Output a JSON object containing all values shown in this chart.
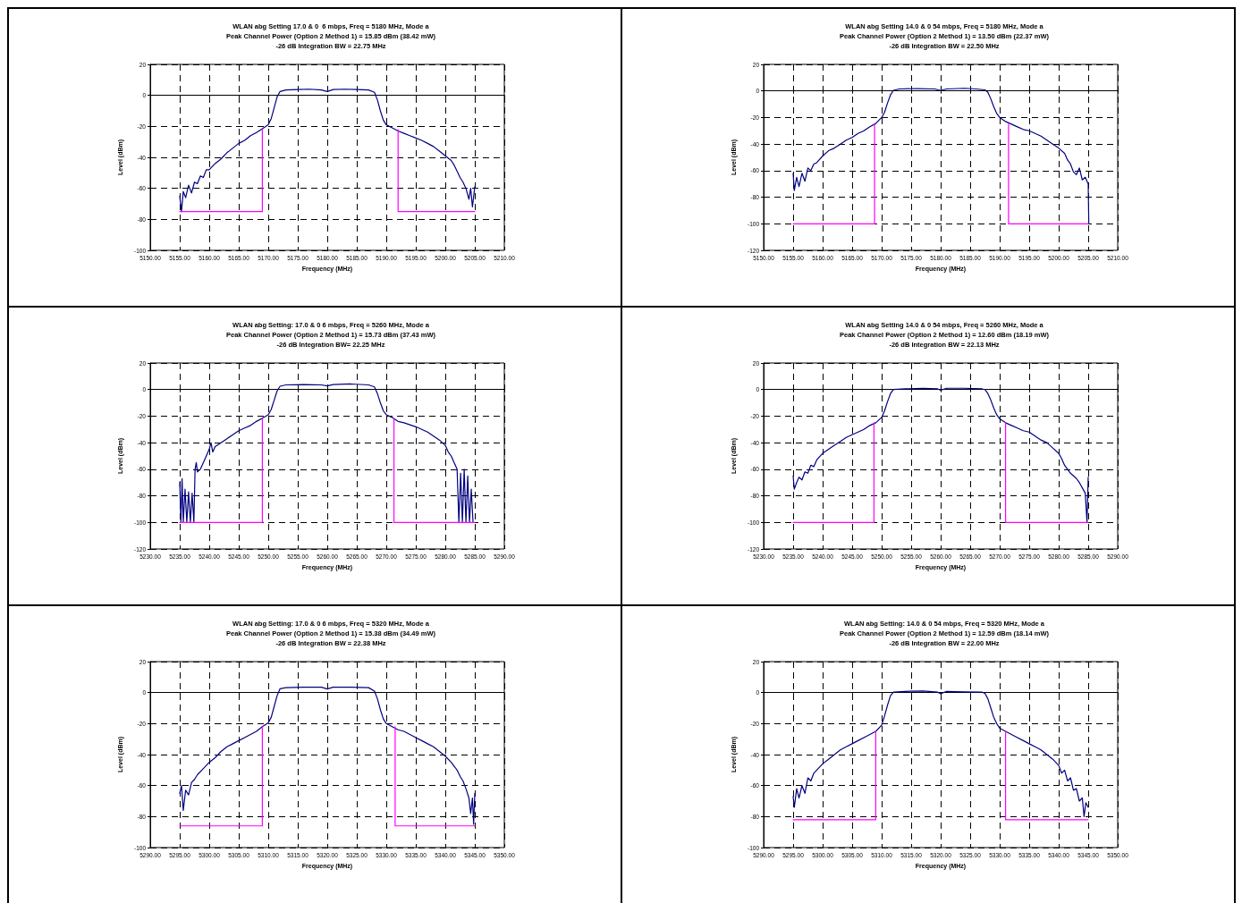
{
  "chart_data": [
    {
      "type": "line",
      "title": "WLAN abg Setting 17.0 & 0  6 mbps, Freq = 5180 MHz, Mode a",
      "subtitle": "Peak Channel Power (Option 2 Method 1) = 15.85 dBm (38.42 mW)",
      "annotations": [
        "-26 dB Integration BW = 22.75 MHz"
      ],
      "xlabel": "Frequency (MHz)",
      "ylabel": "Level (dBm)",
      "grid": true,
      "marker": "none",
      "line_style": "solid",
      "xlim": [
        5150,
        5210
      ],
      "xticks": [
        {
          "value": 5150,
          "label": "5150.00"
        },
        {
          "value": 5155,
          "label": "5155.00"
        },
        {
          "value": 5160,
          "label": "5160.00"
        },
        {
          "value": 5165,
          "label": "5165.00"
        },
        {
          "value": 5170,
          "label": "5170.00"
        },
        {
          "value": 5175,
          "label": "5175.00"
        },
        {
          "value": 5180,
          "label": "5180.00"
        },
        {
          "value": 5185,
          "label": "5185.00"
        },
        {
          "value": 5190,
          "label": "5190.00"
        },
        {
          "value": 5195,
          "label": "5195.00"
        },
        {
          "value": 5200,
          "label": "5200.00"
        },
        {
          "value": 5205,
          "label": "5205.00"
        },
        {
          "value": 5210,
          "label": "5210.00"
        }
      ],
      "ylim": [
        -100,
        20
      ],
      "yticks": [
        -100,
        -80,
        -60,
        -40,
        -20,
        0,
        20
      ],
      "series": [
        {
          "color": "#000080",
          "x": [
            5155,
            5155.3,
            5155.6,
            5156,
            5156.5,
            5157,
            5157.5,
            5158,
            5158.5,
            5159,
            5159.5,
            5160,
            5161,
            5162,
            5163,
            5164,
            5165,
            5166,
            5167,
            5168,
            5169,
            5170,
            5170.5,
            5171,
            5171.5,
            5172,
            5173,
            5175,
            5177,
            5179,
            5180,
            5181,
            5183,
            5185,
            5187,
            5188,
            5188.5,
            5189,
            5189.5,
            5190,
            5191,
            5192,
            5193,
            5194,
            5195,
            5196,
            5197,
            5198,
            5199,
            5200,
            5201,
            5201.5,
            5202,
            5202.5,
            5203,
            5203.5,
            5204,
            5204.3,
            5204.6,
            5205
          ],
          "values": [
            -65,
            -75,
            -62,
            -66,
            -58,
            -63,
            -56,
            -57,
            -52,
            -53,
            -48,
            -48,
            -44,
            -41,
            -37,
            -34,
            -31,
            -29,
            -26,
            -24,
            -21.5,
            -19,
            -15,
            -8,
            -1,
            2.5,
            3.5,
            3.8,
            4,
            3.5,
            2.5,
            3.8,
            4,
            3.8,
            3.5,
            2,
            -3,
            -10,
            -16,
            -19,
            -21,
            -23,
            -24.5,
            -26,
            -27.5,
            -29,
            -31,
            -33,
            -36,
            -39,
            -42,
            -45,
            -49,
            -53,
            -56,
            -60,
            -67,
            -60,
            -72,
            -59
          ]
        },
        {
          "color": "#ff00ff",
          "x": [
            5155,
            5169,
            5169,
            5180,
            5192,
            5192,
            5205
          ],
          "values": [
            -75,
            -75,
            -22,
            null,
            -22,
            -75,
            -75
          ]
        }
      ]
    },
    {
      "type": "line",
      "title": "WLAN abg Setting 14.0 & 0 54 mbps, Freq = 5180 MHz, Mode a",
      "subtitle": "Peak Channel Power (Option 2 Method 1) = 13.50 dBm (22.37 mW)",
      "annotations": [
        "-26 dB Integration BW = 22.50 MHz"
      ],
      "xlabel": "Frequency (MHz)",
      "ylabel": "Level (dBm)",
      "grid": true,
      "marker": "none",
      "line_style": "solid",
      "xlim": [
        5150,
        5210
      ],
      "xticks": [
        {
          "value": 5150,
          "label": "5150.00"
        },
        {
          "value": 5155,
          "label": "5155.00"
        },
        {
          "value": 5160,
          "label": "5160.00"
        },
        {
          "value": 5165,
          "label": "5165.00"
        },
        {
          "value": 5170,
          "label": "5170.00"
        },
        {
          "value": 5175,
          "label": "5175.00"
        },
        {
          "value": 5180,
          "label": "5180.00"
        },
        {
          "value": 5185,
          "label": "5185.00"
        },
        {
          "value": 5190,
          "label": "5190.00"
        },
        {
          "value": 5195,
          "label": "5195.00"
        },
        {
          "value": 5200,
          "label": "5200.00"
        },
        {
          "value": 5205,
          "label": "5205.00"
        },
        {
          "value": 5210,
          "label": "5210.00"
        }
      ],
      "ylim": [
        -120,
        20
      ],
      "yticks": [
        -120,
        -100,
        -80,
        -60,
        -40,
        -20,
        0,
        20
      ],
      "series": [
        {
          "color": "#000080",
          "x": [
            5155,
            5155.2,
            5155.6,
            5156,
            5156.5,
            5157,
            5157.5,
            5158,
            5158.5,
            5159,
            5160,
            5161,
            5162,
            5163,
            5164,
            5165,
            5166,
            5167,
            5168,
            5169,
            5170,
            5170.5,
            5171,
            5171.5,
            5172,
            5173,
            5176,
            5179,
            5180,
            5181,
            5184,
            5186,
            5187.5,
            5188,
            5188.5,
            5189,
            5189.5,
            5190,
            5191,
            5192,
            5193,
            5194,
            5195,
            5196,
            5197,
            5198,
            5199,
            5200,
            5201,
            5201.5,
            5202,
            5202.5,
            5203,
            5203.5,
            5204,
            5204.5,
            5205,
            5205.1
          ],
          "values": [
            -62,
            -75,
            -65,
            -72,
            -62,
            -68,
            -58,
            -60,
            -55,
            -54,
            -49,
            -45,
            -43,
            -40,
            -37,
            -35,
            -32,
            -30,
            -27,
            -24.5,
            -20,
            -16,
            -9,
            -3,
            0.5,
            1.5,
            1.8,
            1.5,
            0.3,
            1.5,
            2,
            1.5,
            0.8,
            -1,
            -6,
            -12,
            -17,
            -20,
            -23,
            -25,
            -27,
            -29,
            -30,
            -32,
            -34,
            -37,
            -40,
            -43,
            -47,
            -52,
            -55,
            -61,
            -63,
            -58,
            -67,
            -65,
            -70,
            -100
          ]
        },
        {
          "color": "#ff00ff",
          "x": [
            5155,
            5168.8,
            5168.8,
            5180,
            5191.5,
            5191.5,
            5205
          ],
          "values": [
            -100,
            -100,
            -25,
            null,
            -25,
            -100,
            -100
          ]
        }
      ]
    },
    {
      "type": "line",
      "title": "WLAN abg Setting: 17.0 & 0 6 mbps, Freq = 5260 MHz, Mode a",
      "subtitle": "Peak Channel Power (Option 2 Method 1) = 15.73 dBm (37.43 mW)",
      "annotations": [
        "-26 dB Integration BW= 22.25 MHz"
      ],
      "xlabel": "Frequency (MHz)",
      "ylabel": "Level (dBm)",
      "grid": true,
      "marker": "none",
      "line_style": "solid",
      "xlim": [
        5230,
        5290
      ],
      "xticks": [
        {
          "value": 5230,
          "label": "5230.00"
        },
        {
          "value": 5235,
          "label": "5235.00"
        },
        {
          "value": 5240,
          "label": "5240.00"
        },
        {
          "value": 5245,
          "label": "5245.00"
        },
        {
          "value": 5250,
          "label": "5250.00"
        },
        {
          "value": 5255,
          "label": "5255.00"
        },
        {
          "value": 5260,
          "label": "5260.00"
        },
        {
          "value": 5265,
          "label": "5265.00"
        },
        {
          "value": 5270,
          "label": "5270.00"
        },
        {
          "value": 5275,
          "label": "5275.00"
        },
        {
          "value": 5280,
          "label": "5280.00"
        },
        {
          "value": 5285,
          "label": "5285.00"
        },
        {
          "value": 5290,
          "label": "5290.00"
        }
      ],
      "ylim": [
        -120,
        20
      ],
      "yticks": [
        -120,
        -100,
        -80,
        -60,
        -40,
        -20,
        0,
        20
      ],
      "series": [
        {
          "color": "#000080",
          "x": [
            5235,
            5235.2,
            5235.4,
            5235.6,
            5235.9,
            5236.2,
            5236.5,
            5236.8,
            5237.1,
            5237.4,
            5237.6,
            5237.8,
            5238,
            5238.5,
            5239,
            5239.5,
            5240,
            5240.3,
            5240.6,
            5241,
            5242,
            5243,
            5244,
            5245,
            5246,
            5247,
            5248,
            5249,
            5250,
            5250.5,
            5251,
            5251.5,
            5252,
            5253,
            5256,
            5259,
            5260,
            5261,
            5264,
            5267,
            5268,
            5268.5,
            5269,
            5269.5,
            5270,
            5271,
            5272,
            5273,
            5274,
            5275,
            5276,
            5277,
            5278,
            5279,
            5280,
            5280.5,
            5281,
            5281.5,
            5282,
            5282.3,
            5282.6,
            5282.9,
            5283.2,
            5283.5,
            5283.8,
            5284.1,
            5284.4,
            5284.7
          ],
          "values": [
            -70,
            -100,
            -67,
            -100,
            -75,
            -100,
            -77,
            -100,
            -78,
            -100,
            -60,
            -55,
            -62,
            -60,
            -55,
            -50,
            -45,
            -40,
            -47,
            -43,
            -40,
            -37,
            -34,
            -31,
            -29,
            -27,
            -24,
            -21.5,
            -19,
            -15,
            -8,
            -1,
            2.5,
            3.5,
            3.8,
            3.5,
            2.8,
            3.8,
            4.2,
            3.5,
            2,
            -3,
            -10,
            -16,
            -19,
            -21,
            -24,
            -25,
            -26.5,
            -28,
            -30,
            -32,
            -35,
            -38,
            -42,
            -47,
            -50,
            -55,
            -60,
            -100,
            -63,
            -100,
            -60,
            -100,
            -65,
            -100,
            -75,
            -100
          ]
        },
        {
          "color": "#ff00ff",
          "x": [
            5235,
            5249,
            5249,
            5260,
            5271.3,
            5271.3,
            5285
          ],
          "values": [
            -100,
            -100,
            -22,
            null,
            -22,
            -100,
            -100
          ]
        }
      ]
    },
    {
      "type": "line",
      "title": "WLAN abg Setting 14.0 & 0 54 mbps, Freq = 5260 MHz, Mode a",
      "subtitle": "Peak Channel Power (Option 2 Method 1) = 12.60 dBm (18.19 mW)",
      "annotations": [
        "-26 dB Integration BW = 22.13 MHz"
      ],
      "xlabel": "Frequency (MHz)",
      "ylabel": "Level (dBm)",
      "grid": true,
      "marker": "none",
      "line_style": "solid",
      "xlim": [
        5230,
        5290
      ],
      "xticks": [
        {
          "value": 5230,
          "label": "5230.00"
        },
        {
          "value": 5235,
          "label": "5235.00"
        },
        {
          "value": 5240,
          "label": "5240.00"
        },
        {
          "value": 5245,
          "label": "5245.00"
        },
        {
          "value": 5250,
          "label": "5250.00"
        },
        {
          "value": 5255,
          "label": "5255.00"
        },
        {
          "value": 5260,
          "label": "5260.00"
        },
        {
          "value": 5265,
          "label": "5265.00"
        },
        {
          "value": 5270,
          "label": "5270.00"
        },
        {
          "value": 5275,
          "label": "5275.00"
        },
        {
          "value": 5280,
          "label": "5280.00"
        },
        {
          "value": 5285,
          "label": "5285.00"
        },
        {
          "value": 5290,
          "label": "5290.00"
        }
      ],
      "ylim": [
        -120,
        20
      ],
      "yticks": [
        -120,
        -100,
        -80,
        -60,
        -40,
        -20,
        0,
        20
      ],
      "series": [
        {
          "color": "#000080",
          "x": [
            5235,
            5235.2,
            5235.6,
            5236,
            5236.5,
            5237,
            5237.5,
            5238,
            5238.5,
            5239,
            5240,
            5241,
            5242,
            5243,
            5244,
            5245,
            5246,
            5247,
            5248,
            5249,
            5250,
            5250.5,
            5251,
            5251.5,
            5252,
            5254,
            5257,
            5259.5,
            5260,
            5261,
            5264,
            5267,
            5267.5,
            5268,
            5268.5,
            5269,
            5269.5,
            5270,
            5271,
            5272,
            5273,
            5274,
            5275,
            5276,
            5277,
            5278,
            5279,
            5280,
            5280.5,
            5281,
            5281.5,
            5282,
            5283,
            5283.5,
            5284,
            5284.5,
            5284.8,
            5285
          ],
          "values": [
            -65,
            -75,
            -70,
            -66,
            -68,
            -62,
            -63,
            -57,
            -58,
            -53,
            -48,
            -45,
            -42,
            -39,
            -36,
            -34,
            -32,
            -30,
            -27,
            -25,
            -21,
            -16,
            -9,
            -3,
            0,
            0.5,
            1,
            0.5,
            -0.5,
            1,
            1,
            0.5,
            0,
            -3,
            -8,
            -14,
            -19,
            -22,
            -25,
            -27,
            -29,
            -31,
            -32,
            -35,
            -38,
            -40,
            -44,
            -48,
            -52,
            -57,
            -60,
            -63,
            -67,
            -70,
            -74,
            -78,
            -100,
            -66
          ]
        },
        {
          "color": "#ff00ff",
          "x": [
            5235,
            5248.7,
            5248.7,
            5260,
            5271,
            5271,
            5285
          ],
          "values": [
            -100,
            -100,
            -25,
            null,
            -25,
            -100,
            -100
          ]
        }
      ]
    },
    {
      "type": "line",
      "title": "WLAN abg Setting: 17.0 & 0 6 mbps, Freq = 5320 MHz, Mode a",
      "subtitle": "Peak Channel Power (Option 2 Method 1) = 15.38 dBm (34.49 mW)",
      "annotations": [
        "-26 dB Integration BW = 22.38 MHz"
      ],
      "xlabel": "Frequency (MHz)",
      "ylabel": "Level (dBm)",
      "grid": true,
      "marker": "none",
      "line_style": "solid",
      "xlim": [
        5290,
        5350
      ],
      "xticks": [
        {
          "value": 5290,
          "label": "5290.00"
        },
        {
          "value": 5295,
          "label": "5295.00"
        },
        {
          "value": 5300,
          "label": "5300.00"
        },
        {
          "value": 5305,
          "label": "5305.00"
        },
        {
          "value": 5310,
          "label": "5310.00"
        },
        {
          "value": 5315,
          "label": "5315.00"
        },
        {
          "value": 5320,
          "label": "5320.00"
        },
        {
          "value": 5325,
          "label": "5325.00"
        },
        {
          "value": 5330,
          "label": "5330.00"
        },
        {
          "value": 5335,
          "label": "5335.00"
        },
        {
          "value": 5340,
          "label": "5340.00"
        },
        {
          "value": 5345,
          "label": "5345.00"
        },
        {
          "value": 5350,
          "label": "5350.00"
        }
      ],
      "ylim": [
        -100,
        20
      ],
      "yticks": [
        -100,
        -80,
        -60,
        -40,
        -20,
        0,
        20
      ],
      "series": [
        {
          "color": "#000080",
          "x": [
            5295,
            5295.3,
            5295.6,
            5296,
            5296.5,
            5297,
            5297.5,
            5298,
            5299,
            5300,
            5301,
            5302,
            5303,
            5304,
            5305,
            5306,
            5307,
            5308,
            5309,
            5310,
            5310.5,
            5311,
            5311.5,
            5312,
            5313,
            5316,
            5319,
            5320,
            5321,
            5324,
            5327,
            5328,
            5328.5,
            5329,
            5329.5,
            5330,
            5331,
            5332,
            5333,
            5334,
            5335,
            5336,
            5337,
            5338,
            5339,
            5340,
            5341,
            5342,
            5342.5,
            5343,
            5343.5,
            5344,
            5344.3,
            5344.6,
            5344.8,
            5345
          ],
          "values": [
            -65,
            -60,
            -76,
            -63,
            -66,
            -58,
            -56,
            -53,
            -49,
            -45,
            -42,
            -38,
            -35,
            -33,
            -31,
            -29,
            -27,
            -25,
            -22,
            -19.5,
            -16,
            -9,
            -2,
            2.5,
            3.2,
            3.5,
            3.5,
            2.3,
            3.5,
            3.5,
            3.2,
            1,
            -4,
            -11,
            -17,
            -20,
            -22,
            -24,
            -25,
            -27,
            -29,
            -31,
            -33,
            -35,
            -38,
            -41,
            -45,
            -50,
            -54,
            -57,
            -62,
            -68,
            -78,
            -68,
            -85,
            -65
          ]
        },
        {
          "color": "#ff00ff",
          "x": [
            5295,
            5309,
            5309,
            5320,
            5331.5,
            5331.5,
            5345
          ],
          "values": [
            -86,
            -86,
            -22,
            null,
            -22,
            -86,
            -86
          ]
        }
      ]
    },
    {
      "type": "line",
      "title": "WLAN abg Setting: 14.0 & 0 54 mbps, Freq = 5320 MHz, Mode a",
      "subtitle": "Peak Channel Power (Option 2 Method 1) = 12.59 dBm (18.14 mW)",
      "annotations": [
        "-26 dB Integration BW = 22.00 MHz"
      ],
      "xlabel": "Frequency (MHz)",
      "ylabel": "Level (dBm)",
      "grid": true,
      "marker": "none",
      "line_style": "solid",
      "xlim": [
        5290,
        5350
      ],
      "xticks": [
        {
          "value": 5290,
          "label": "5290.00"
        },
        {
          "value": 5295,
          "label": "5295.00"
        },
        {
          "value": 5300,
          "label": "5300.00"
        },
        {
          "value": 5305,
          "label": "5305.00"
        },
        {
          "value": 5310,
          "label": "5310.00"
        },
        {
          "value": 5315,
          "label": "5315.00"
        },
        {
          "value": 5320,
          "label": "5320.00"
        },
        {
          "value": 5325,
          "label": "5325.00"
        },
        {
          "value": 5330,
          "label": "5330.00"
        },
        {
          "value": 5335,
          "label": "5335.00"
        },
        {
          "value": 5340,
          "label": "5340.00"
        },
        {
          "value": 5345,
          "label": "5345.00"
        },
        {
          "value": 5350,
          "label": "5350.00"
        }
      ],
      "ylim": [
        -100,
        20
      ],
      "yticks": [
        -100,
        -80,
        -60,
        -40,
        -20,
        0,
        20
      ],
      "series": [
        {
          "color": "#000080",
          "x": [
            5295,
            5295.2,
            5295.6,
            5296,
            5296.5,
            5297,
            5297.5,
            5298,
            5298.5,
            5299,
            5300,
            5301,
            5302,
            5303,
            5304,
            5305,
            5306,
            5307,
            5308,
            5309,
            5310,
            5310.5,
            5311,
            5311.5,
            5312,
            5314,
            5317,
            5319.5,
            5320,
            5321,
            5324,
            5327,
            5327.5,
            5328,
            5328.5,
            5329,
            5329.5,
            5330,
            5331,
            5332,
            5333,
            5334,
            5335,
            5336,
            5337,
            5338,
            5339,
            5340,
            5340.5,
            5341,
            5341.5,
            5342,
            5342.5,
            5343,
            5343.5,
            5344,
            5344.3,
            5344.6,
            5345
          ],
          "values": [
            -67,
            -74,
            -62,
            -68,
            -60,
            -65,
            -55,
            -57,
            -52,
            -50,
            -46,
            -43,
            -40,
            -37,
            -35,
            -33,
            -31,
            -29,
            -27,
            -25,
            -21,
            -15,
            -8,
            -2,
            0.3,
            0.8,
            1,
            0.3,
            -0.8,
            0.8,
            0.5,
            0.3,
            -0.5,
            -4,
            -10,
            -16,
            -20,
            -23,
            -25,
            -27,
            -29,
            -31,
            -33,
            -35,
            -37,
            -40,
            -43,
            -47,
            -52,
            -50,
            -57,
            -55,
            -63,
            -62,
            -70,
            -68,
            -80,
            -71,
            -74
          ]
        },
        {
          "color": "#ff00ff",
          "x": [
            5295,
            5309,
            5309,
            5320,
            5331,
            5331,
            5345
          ],
          "values": [
            -82,
            -82,
            -25,
            null,
            -25,
            -82,
            -82
          ]
        }
      ]
    }
  ]
}
